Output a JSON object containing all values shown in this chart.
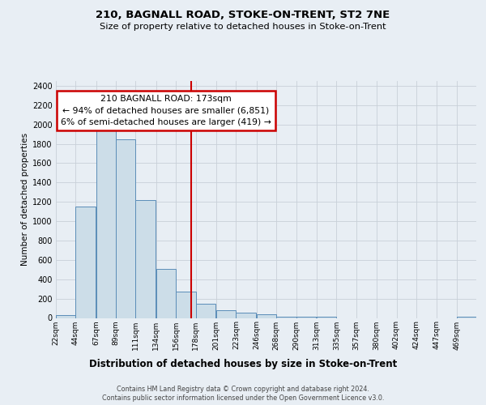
{
  "title1": "210, BAGNALL ROAD, STOKE-ON-TRENT, ST2 7NE",
  "title2": "Size of property relative to detached houses in Stoke-on-Trent",
  "xlabel": "Distribution of detached houses by size in Stoke-on-Trent",
  "ylabel": "Number of detached properties",
  "bin_labels": [
    "22sqm",
    "44sqm",
    "67sqm",
    "89sqm",
    "111sqm",
    "134sqm",
    "156sqm",
    "178sqm",
    "201sqm",
    "223sqm",
    "246sqm",
    "268sqm",
    "290sqm",
    "313sqm",
    "335sqm",
    "357sqm",
    "380sqm",
    "402sqm",
    "424sqm",
    "447sqm",
    "469sqm"
  ],
  "bin_left_edges": [
    22,
    44,
    67,
    89,
    111,
    134,
    156,
    178,
    201,
    223,
    246,
    268,
    290,
    313,
    335,
    357,
    380,
    402,
    424,
    447,
    469
  ],
  "bar_heights": [
    30,
    1150,
    1950,
    1850,
    1220,
    510,
    270,
    150,
    80,
    55,
    40,
    15,
    10,
    10,
    0,
    0,
    0,
    0,
    0,
    0,
    10
  ],
  "bar_color": "#ccdde8",
  "bar_edge_color": "#5b8db8",
  "property_size": 173,
  "vline_color": "#cc0000",
  "ylim": [
    0,
    2450
  ],
  "yticks": [
    0,
    200,
    400,
    600,
    800,
    1000,
    1200,
    1400,
    1600,
    1800,
    2000,
    2200,
    2400
  ],
  "annotation_title": "210 BAGNALL ROAD: 173sqm",
  "annotation_line1": "← 94% of detached houses are smaller (6,851)",
  "annotation_line2": "6% of semi-detached houses are larger (419) →",
  "annotation_box_facecolor": "#ffffff",
  "annotation_box_edgecolor": "#cc0000",
  "grid_color": "#c8d0d8",
  "bg_color": "#e8eef4",
  "footer1": "Contains HM Land Registry data © Crown copyright and database right 2024.",
  "footer2": "Contains public sector information licensed under the Open Government Licence v3.0."
}
